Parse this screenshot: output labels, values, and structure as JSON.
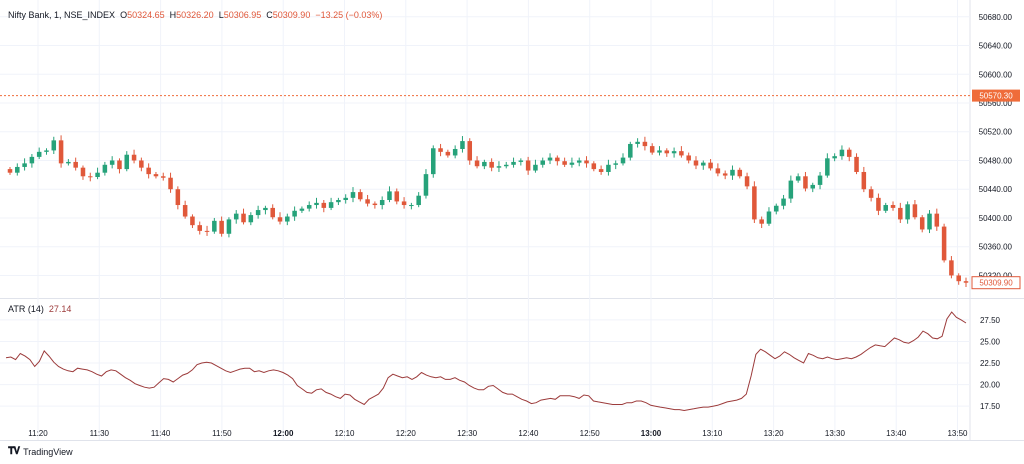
{
  "header": {
    "symbol": "Nifty Bank, 1, NSE_INDEX",
    "o_label": "O",
    "o": "50324.65",
    "h_label": "H",
    "h": "50326.20",
    "l_label": "L",
    "l": "50306.95",
    "c_label": "C",
    "c": "50309.90",
    "change": "−13.25 (−0.03%)"
  },
  "atr_header": {
    "label": "ATR (14)",
    "value": "27.14"
  },
  "footer": {
    "brand": "TradingView"
  },
  "colors": {
    "up": "#26a27a",
    "down": "#e0583a",
    "atr": "#9c3b3b",
    "grid": "#f0f3fa",
    "text": "#131722",
    "ref": "#ef6c3a"
  },
  "chart_data": [
    {
      "type": "candlestick",
      "x_ticks": [
        "11:20",
        "11:30",
        "11:40",
        "11:50",
        "12:00",
        "12:10",
        "12:20",
        "12:30",
        "12:40",
        "12:50",
        "13:00",
        "13:10",
        "13:20",
        "13:30",
        "13:40",
        "13:50"
      ],
      "y_ticks": [
        "50680.00",
        "50640.00",
        "50600.00",
        "50560.00",
        "50520.00",
        "50480.00",
        "50440.00",
        "50400.00",
        "50360.00",
        "50320.00"
      ],
      "ylim": [
        50290,
        50695
      ],
      "reference_line": {
        "value": 50570.3,
        "label": "50570.30"
      },
      "last_price": {
        "value": 50309.9,
        "label": "50309.90"
      },
      "closes": [
        50463,
        50471,
        50476,
        50485,
        50492,
        50494,
        50508,
        50476,
        50478,
        50470,
        50458,
        50457,
        50463,
        50474,
        50480,
        50468,
        50488,
        50480,
        50470,
        50461,
        50458,
        50456,
        50440,
        50418,
        50402,
        50390,
        50382,
        50381,
        50396,
        50378,
        50398,
        50406,
        50394,
        50404,
        50411,
        50414,
        50401,
        50395,
        50402,
        50410,
        50413,
        50418,
        50421,
        50414,
        50422,
        50425,
        50428,
        50436,
        50426,
        50420,
        50418,
        50425,
        50437,
        50423,
        50418,
        50418,
        50431,
        50461,
        50497,
        50492,
        50487,
        50496,
        50507,
        50480,
        50472,
        50478,
        50470,
        50472,
        50474,
        50478,
        50480,
        50466,
        50474,
        50480,
        50484,
        50479,
        50474,
        50477,
        50480,
        50476,
        50468,
        50464,
        50474,
        50476,
        50484,
        50503,
        50506,
        50500,
        50491,
        50494,
        50490,
        50493,
        50487,
        50480,
        50473,
        50477,
        50469,
        50462,
        50459,
        50467,
        50458,
        50444,
        50398,
        50392,
        50409,
        50417,
        50427,
        50452,
        50458,
        50441,
        50446,
        50459,
        50483,
        50486,
        50495,
        50485,
        50464,
        50440,
        50428,
        50410,
        50418,
        50414,
        50398,
        50419,
        50401,
        50384,
        50406,
        50388,
        50341,
        50320,
        50312,
        50309.9
      ]
    },
    {
      "type": "line",
      "name": "ATR (14)",
      "y_ticks": [
        "27.50",
        "25.00",
        "22.50",
        "20.00",
        "17.50"
      ],
      "ylim": [
        15.9,
        29.8
      ],
      "values": [
        23.1,
        23.2,
        22.9,
        23.6,
        23.3,
        22.9,
        22.1,
        22.7,
        23.9,
        23.3,
        22.6,
        22.1,
        21.8,
        21.6,
        21.5,
        21.9,
        21.8,
        21.7,
        21.5,
        21.2,
        21.0,
        21.5,
        21.7,
        21.6,
        21.2,
        20.8,
        20.5,
        20.1,
        19.9,
        19.7,
        19.6,
        19.7,
        20.2,
        20.7,
        20.6,
        20.3,
        20.7,
        21.1,
        21.3,
        21.7,
        22.3,
        22.5,
        22.6,
        22.5,
        22.2,
        21.9,
        21.6,
        21.4,
        21.6,
        21.8,
        21.9,
        21.9,
        21.5,
        21.6,
        21.4,
        21.6,
        21.7,
        21.6,
        21.4,
        21.1,
        20.7,
        19.9,
        19.5,
        19.1,
        19.0,
        19.4,
        19.5,
        19.1,
        18.9,
        18.6,
        18.4,
        18.9,
        18.8,
        18.3,
        18.0,
        17.7,
        18.3,
        18.6,
        18.9,
        19.6,
        20.8,
        21.2,
        21.0,
        20.8,
        20.9,
        20.6,
        20.9,
        21.4,
        21.1,
        20.9,
        20.8,
        20.9,
        20.6,
        20.6,
        20.8,
        20.5,
        20.3,
        19.9,
        19.6,
        19.4,
        19.4,
        19.8,
        19.9,
        19.5,
        19.1,
        18.9,
        18.9,
        18.6,
        18.3,
        18.1,
        17.8,
        17.9,
        18.2,
        18.3,
        18.4,
        18.3,
        18.7,
        18.7,
        18.7,
        18.6,
        18.4,
        18.8,
        18.7,
        18.1,
        18.0,
        17.9,
        17.8,
        17.7,
        17.7,
        17.7,
        17.9,
        17.9,
        18.1,
        18.1,
        17.9,
        17.6,
        17.5,
        17.4,
        17.3,
        17.2,
        17.1,
        17.1,
        17.0,
        17.1,
        17.2,
        17.3,
        17.4,
        17.4,
        17.5,
        17.6,
        17.8,
        18.0,
        18.1,
        18.2,
        18.4,
        18.9,
        21.0,
        23.5,
        24.1,
        23.8,
        23.4,
        23.0,
        23.3,
        23.8,
        23.5,
        23.1,
        22.8,
        22.5,
        23.6,
        23.4,
        23.1,
        23.0,
        23.2,
        23.0,
        22.9,
        23.0,
        23.1,
        23.0,
        23.2,
        23.5,
        23.9,
        24.3,
        24.6,
        24.5,
        24.4,
        24.9,
        25.4,
        25.2,
        24.9,
        24.8,
        25.1,
        25.5,
        26.2,
        25.9,
        25.4,
        25.3,
        25.6,
        27.6,
        28.4,
        27.8,
        27.5,
        27.14
      ]
    }
  ]
}
